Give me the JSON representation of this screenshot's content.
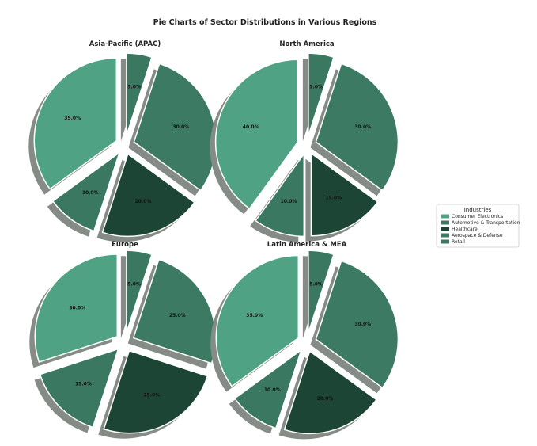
{
  "title": "Pie Charts of Sector Distributions in Various Regions",
  "legend": {
    "title": "Industries",
    "placement": "right"
  },
  "colors": {
    "Consumer Electronics": "#4fa384",
    "Automotive & Transportation": "#3a7862",
    "Healthcare": "#1d4535",
    "Aerospace & Defense": "#3c7a63",
    "Retail": "#3a7862",
    "shadow": "#858c88"
  },
  "chart_data": [
    {
      "type": "pie",
      "title": "Asia-Pacific (APAC)",
      "categories": [
        "Consumer Electronics",
        "Automotive & Transportation",
        "Healthcare",
        "Aerospace & Defense",
        "Retail"
      ],
      "values": [
        35,
        10,
        20,
        30,
        5
      ],
      "labels": [
        "35.0%",
        "10.0%",
        "20.0%",
        "30.0%",
        "5.0%"
      ]
    },
    {
      "type": "pie",
      "title": "North America",
      "categories": [
        "Consumer Electronics",
        "Automotive & Transportation",
        "Healthcare",
        "Aerospace & Defense",
        "Retail"
      ],
      "values": [
        40,
        10,
        15,
        30,
        5
      ],
      "labels": [
        "40.0%",
        "10.0%",
        "15.0%",
        "30.0%",
        "5.0%"
      ]
    },
    {
      "type": "pie",
      "title": "Europe",
      "categories": [
        "Consumer Electronics",
        "Automotive & Transportation",
        "Healthcare",
        "Aerospace & Defense",
        "Retail"
      ],
      "values": [
        30,
        15,
        25,
        25,
        5
      ],
      "labels": [
        "30.0%",
        "15.0%",
        "25.0%",
        "25.0%",
        "5.0%"
      ]
    },
    {
      "type": "pie",
      "title": "Latin America & MEA",
      "categories": [
        "Consumer Electronics",
        "Automotive & Transportation",
        "Healthcare",
        "Aerospace & Defense",
        "Retail"
      ],
      "values": [
        35,
        10,
        20,
        30,
        5
      ],
      "labels": [
        "35.0%",
        "10.0%",
        "20.0%",
        "30.0%",
        "5.0%"
      ]
    }
  ]
}
